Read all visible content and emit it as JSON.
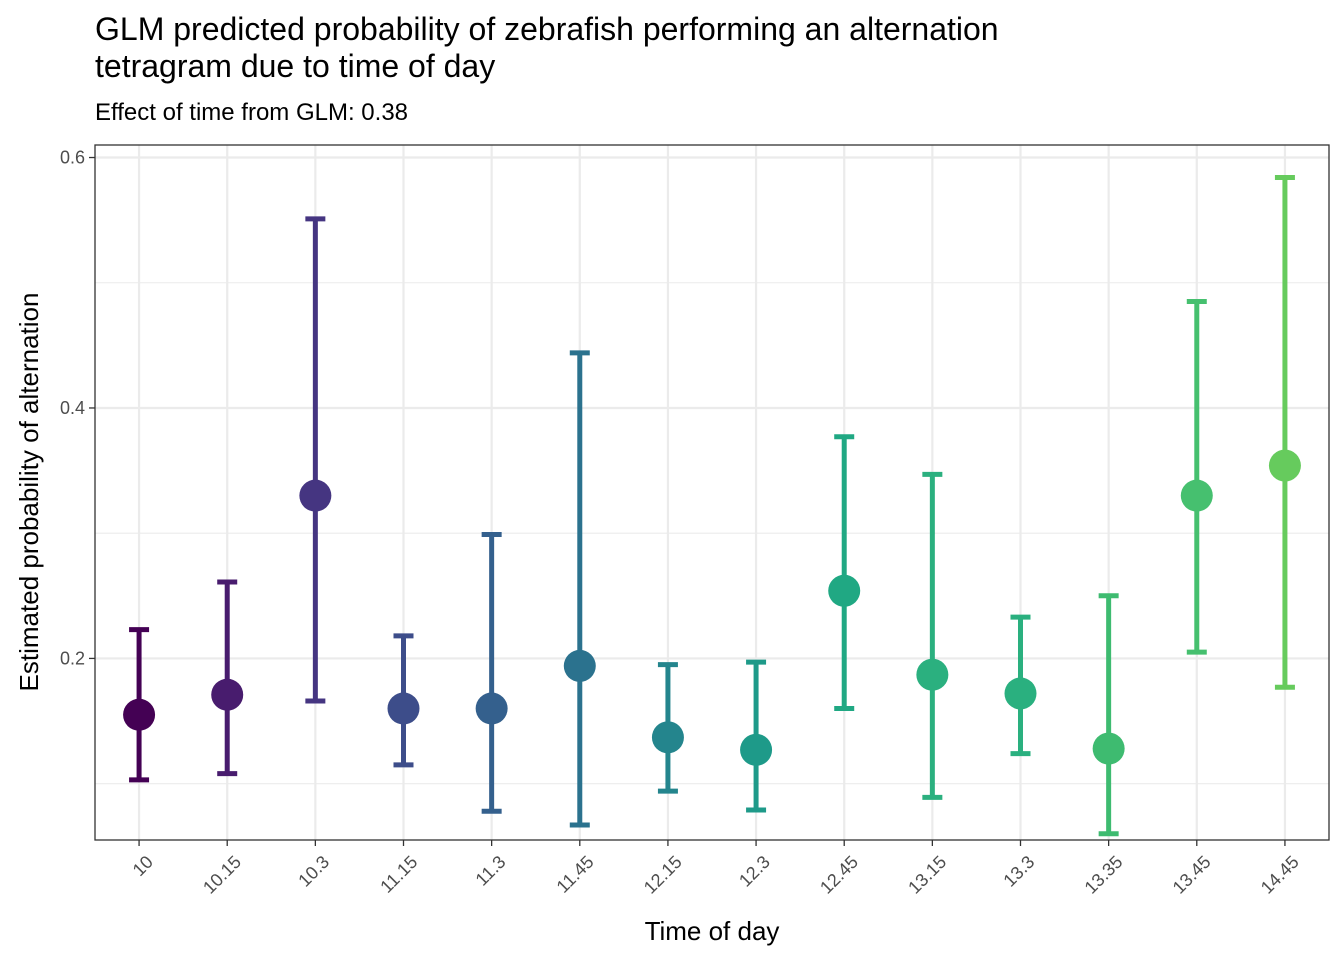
{
  "chart_data": {
    "type": "scatter",
    "title_lines": [
      "GLM predicted probability of zebrafish performing an alternation",
      "tetragram due to time of day"
    ],
    "subtitle": "Effect of time from GLM: 0.38",
    "xlabel": "Time of day",
    "ylabel": "Estimated probability of alternation",
    "ylim": [
      0.055,
      0.61
    ],
    "yticks": [
      0.2,
      0.4,
      0.6
    ],
    "ytick_labels": [
      "0.2",
      "0.4",
      "0.6"
    ],
    "grid": true,
    "legend": "none",
    "categories": [
      "10",
      "10.15",
      "10.3",
      "11.15",
      "11.3",
      "11.45",
      "12.15",
      "12.3",
      "12.45",
      "13.15",
      "13.3",
      "13.35",
      "13.45",
      "14.45"
    ],
    "estimate": [
      0.155,
      0.171,
      0.33,
      0.16,
      0.16,
      0.194,
      0.137,
      0.127,
      0.254,
      0.187,
      0.172,
      0.128,
      0.33,
      0.354
    ],
    "lower": [
      0.103,
      0.108,
      0.166,
      0.115,
      0.078,
      0.067,
      0.094,
      0.079,
      0.16,
      0.089,
      0.124,
      0.06,
      0.205,
      0.177
    ],
    "upper": [
      0.223,
      0.261,
      0.551,
      0.218,
      0.299,
      0.444,
      0.195,
      0.197,
      0.377,
      0.347,
      0.233,
      0.25,
      0.485,
      0.584
    ],
    "colors": [
      "#440154",
      "#481C6E",
      "#453581",
      "#3D4D8A",
      "#34608D",
      "#2B728E",
      "#24858D",
      "#1E9A89",
      "#20A883",
      "#2BB07F",
      "#2AB07F",
      "#3EBB70",
      "#46C06F",
      "#66CB5D"
    ]
  }
}
